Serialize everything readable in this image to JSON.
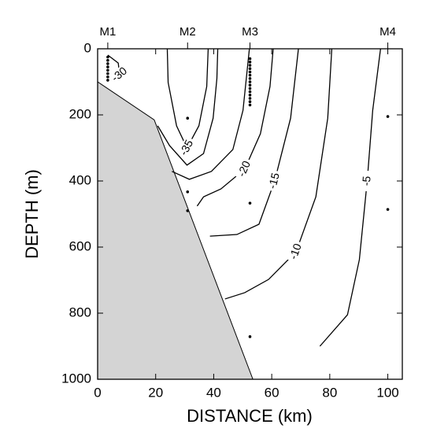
{
  "chart_data": {
    "type": "contour",
    "x_label": "DISTANCE (km)",
    "y_label": "DEPTH (m)",
    "xlim": [
      0,
      105
    ],
    "ylim": [
      0,
      1000
    ],
    "y_inverted": true,
    "xticks": [
      0,
      20,
      40,
      60,
      80,
      100
    ],
    "yticks": [
      0,
      200,
      400,
      600,
      800,
      1000
    ],
    "bathymetry": {
      "x": [
        0,
        19.5,
        53.5
      ],
      "y": [
        100,
        215,
        1000
      ],
      "color": "#d4d4d4"
    },
    "contours": [
      {
        "level": -35,
        "x": [
          24.0,
          24.3,
          27.2,
          30.8,
          34.9,
          37.6,
          38.1
        ],
        "y": [
          0,
          102,
          233,
          300,
          233,
          114,
          0
        ]
      },
      {
        "level": -30,
        "x": [
          3.5,
          7.1,
          7.6,
          4.9,
          null,
          20.7,
          24.8,
          30.8,
          36.5,
          39.8,
          41.1,
          41.4
        ],
        "y": [
          19,
          43,
          79,
          98,
          null,
          233,
          293,
          352,
          317,
          210,
          90,
          0
        ]
      },
      {
        "x": [
          25.6,
          31.6,
          39.2,
          46.6,
          50.1,
          52.3
        ],
        "y": [
          371,
          395,
          371,
          305,
          186,
          0
        ]
      },
      {
        "level": -20,
        "x": [
          34.3,
          36.5,
          42.5,
          50.7,
          56.1,
          59.4,
          60.5
        ],
        "y": [
          476,
          448,
          424,
          364,
          257,
          114,
          0
        ]
      },
      {
        "level": -15,
        "x": [
          38.7,
          48.0,
          55.6,
          61.0,
          66.5,
          69.2
        ],
        "y": [
          567,
          562,
          531,
          400,
          210,
          0
        ]
      },
      {
        "level": -10,
        "x": [
          43.9,
          50.7,
          58.9,
          68.4,
          75.2,
          79.3,
          80.7
        ],
        "y": [
          757,
          738,
          698,
          614,
          448,
          210,
          0
        ]
      },
      {
        "level": -5,
        "x": [
          76.6,
          86.1,
          90.2,
          92.9,
          94.8,
          97.5
        ],
        "y": [
          900,
          805,
          638,
          400,
          186,
          0
        ]
      }
    ],
    "moorings": [
      {
        "name": "M1",
        "x": 3.5,
        "depths": [
          25,
          35,
          45,
          55,
          65,
          75,
          85,
          95
        ]
      },
      {
        "name": "M2",
        "x": 31,
        "depths": [
          210,
          433,
          490
        ]
      },
      {
        "name": "M3",
        "x": 52.5,
        "depths": [
          30,
          40,
          50,
          60,
          70,
          80,
          90,
          100,
          110,
          120,
          130,
          140,
          150,
          160,
          170,
          467,
          871
        ]
      },
      {
        "name": "M4",
        "x": 100,
        "depths": [
          205,
          486
        ]
      }
    ]
  }
}
